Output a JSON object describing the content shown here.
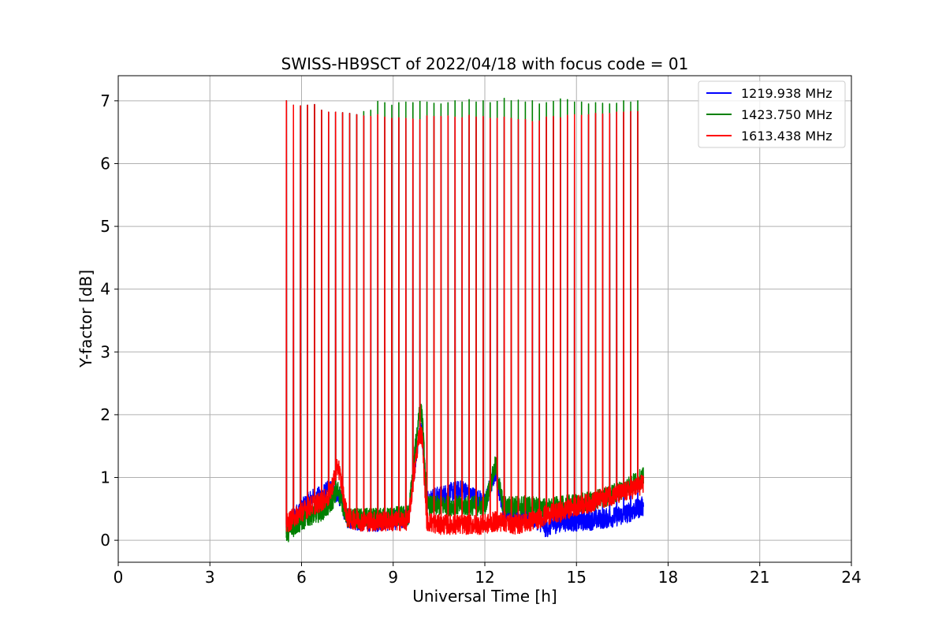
{
  "chart_data": {
    "type": "line",
    "title": "SWISS-HB9SCT of 2022/04/18 with focus code = 01",
    "xlabel": "Universal Time [h]",
    "ylabel": "Y-factor [dB]",
    "xlim": [
      0,
      24
    ],
    "ylim": [
      -0.35,
      7.4
    ],
    "xticks": [
      0,
      3,
      6,
      9,
      12,
      15,
      18,
      21,
      24
    ],
    "yticks": [
      0,
      1,
      2,
      3,
      4,
      5,
      6,
      7
    ],
    "grid": true,
    "legend_position": "top-right",
    "calibration_spikes": {
      "times": [
        5.5,
        5.73,
        5.96,
        6.19,
        6.42,
        6.65,
        6.88,
        7.11,
        7.34,
        7.57,
        7.8,
        8.03,
        8.26,
        8.49,
        8.72,
        8.95,
        9.18,
        9.41,
        9.64,
        9.87,
        10.1,
        10.33,
        10.56,
        10.79,
        11.02,
        11.25,
        11.48,
        11.71,
        11.94,
        12.17,
        12.4,
        12.63,
        12.86,
        13.09,
        13.32,
        13.55,
        13.78,
        14.01,
        14.24,
        14.47,
        14.7,
        14.93,
        15.16,
        15.39,
        15.62,
        15.85,
        16.08,
        16.31,
        16.54,
        16.77,
        17.0
      ],
      "peak_1613_438": [
        7.0,
        6.93,
        6.92,
        6.93,
        6.94,
        6.85,
        6.82,
        6.82,
        6.81,
        6.8,
        6.78,
        6.76,
        6.75,
        6.78,
        6.74,
        6.72,
        6.73,
        6.72,
        6.71,
        6.7,
        6.76,
        6.75,
        6.75,
        6.76,
        6.74,
        6.73,
        6.77,
        6.74,
        6.75,
        6.72,
        6.72,
        6.74,
        6.72,
        6.7,
        6.7,
        6.67,
        6.68,
        6.74,
        6.75,
        6.73,
        6.77,
        6.78,
        6.77,
        6.78,
        6.8,
        6.79,
        6.8,
        6.82,
        6.82,
        6.83,
        6.83
      ],
      "peak_1423_750": [
        7.0,
        6.93,
        6.92,
        6.93,
        6.94,
        6.85,
        6.82,
        6.82,
        6.81,
        6.8,
        6.78,
        6.83,
        6.85,
        6.99,
        6.97,
        6.93,
        6.97,
        6.98,
        6.97,
        6.99,
        6.98,
        6.96,
        6.95,
        6.97,
        7.0,
        6.98,
        7.02,
        6.98,
        7.0,
        6.97,
        6.99,
        7.04,
        7.0,
        7.01,
        6.98,
        7.0,
        6.95,
        6.97,
        6.99,
        7.03,
        7.02,
        6.98,
        6.98,
        6.95,
        6.97,
        6.96,
        6.95,
        6.96,
        7.0,
        6.98,
        7.0
      ]
    },
    "series": [
      {
        "name": "1219.938 MHz",
        "color": "#0000ff",
        "x": [
          5.5,
          5.7,
          6.0,
          6.3,
          6.6,
          6.9,
          7.2,
          7.5,
          8.0,
          8.5,
          9.0,
          9.5,
          9.85,
          9.95,
          10.1,
          10.5,
          11.0,
          11.3,
          11.6,
          12.0,
          12.35,
          12.6,
          13.0,
          13.5,
          13.8,
          14.0,
          14.5,
          15.0,
          15.5,
          16.0,
          16.5,
          17.0,
          17.2
        ],
        "values": [
          0.2,
          0.35,
          0.5,
          0.65,
          0.7,
          0.8,
          0.75,
          0.35,
          0.3,
          0.3,
          0.32,
          0.35,
          1.75,
          1.7,
          0.65,
          0.7,
          0.78,
          0.8,
          0.7,
          0.6,
          1.1,
          0.5,
          0.4,
          0.38,
          0.3,
          0.2,
          0.3,
          0.3,
          0.32,
          0.35,
          0.4,
          0.5,
          0.55
        ]
      },
      {
        "name": "1423.750 MHz",
        "color": "#008000",
        "x": [
          5.5,
          5.7,
          6.0,
          6.3,
          6.6,
          6.9,
          7.2,
          7.5,
          8.0,
          8.5,
          9.0,
          9.5,
          9.85,
          9.95,
          10.1,
          10.5,
          11.0,
          11.3,
          11.6,
          12.0,
          12.35,
          12.6,
          13.0,
          13.5,
          13.8,
          14.0,
          14.5,
          15.0,
          15.5,
          16.0,
          16.5,
          17.0,
          17.2
        ],
        "values": [
          0.1,
          0.2,
          0.3,
          0.4,
          0.45,
          0.55,
          0.8,
          0.35,
          0.35,
          0.35,
          0.38,
          0.4,
          2.05,
          2.0,
          0.55,
          0.55,
          0.55,
          0.55,
          0.55,
          0.55,
          1.2,
          0.55,
          0.55,
          0.55,
          0.55,
          0.5,
          0.55,
          0.58,
          0.62,
          0.7,
          0.8,
          0.95,
          1.0
        ]
      },
      {
        "name": "1613.438 MHz",
        "color": "#ff0000",
        "x": [
          5.5,
          5.7,
          6.0,
          6.3,
          6.6,
          6.9,
          7.2,
          7.5,
          8.0,
          8.5,
          9.0,
          9.5,
          9.85,
          9.95,
          10.1,
          10.5,
          11.0,
          11.3,
          11.6,
          12.0,
          12.35,
          12.6,
          13.0,
          13.5,
          13.8,
          14.0,
          14.5,
          15.0,
          15.5,
          16.0,
          16.5,
          17.0,
          17.2
        ],
        "values": [
          0.25,
          0.35,
          0.45,
          0.55,
          0.6,
          0.7,
          1.2,
          0.35,
          0.3,
          0.3,
          0.3,
          0.32,
          1.7,
          1.65,
          0.3,
          0.25,
          0.25,
          0.25,
          0.25,
          0.25,
          0.3,
          0.3,
          0.25,
          0.3,
          0.35,
          0.4,
          0.45,
          0.55,
          0.6,
          0.7,
          0.75,
          0.85,
          0.9
        ]
      }
    ]
  }
}
